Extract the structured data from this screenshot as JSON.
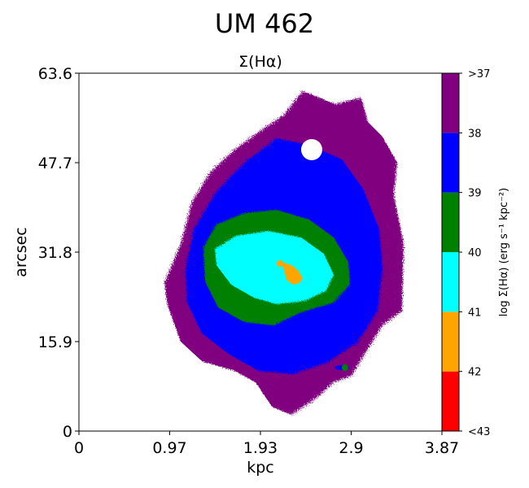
{
  "chart_data": {
    "type": "heatmap",
    "suptitle": "UM 462",
    "title": "Σ(Hα)",
    "xlabel": "kpc",
    "ylabel": "arcsec",
    "xlim": [
      0,
      3.87
    ],
    "ylim": [
      0,
      63.6
    ],
    "x_ticks": [
      "0",
      "0.97",
      "1.93",
      "2.9",
      "3.87"
    ],
    "y_ticks": [
      "0",
      "15.9",
      "31.8",
      "47.7",
      "63.6"
    ],
    "colorbar": {
      "label": "log Σ(Hα) (erg s⁻¹ kpc⁻²)",
      "tick_labels": [
        "<43",
        "42",
        "41",
        "40",
        "39",
        "38",
        ">37"
      ],
      "bins": [
        {
          "range": "<43 – 42",
          "color": "#ff0000"
        },
        {
          "range": "42 – 41",
          "color": "#ffa500"
        },
        {
          "range": "41 – 40",
          "color": "#00ffff"
        },
        {
          "range": "40 – 39",
          "color": "#008000"
        },
        {
          "range": "39 – 38",
          "color": "#0000ff"
        },
        {
          "range": "38 – >37",
          "color": "#800080"
        }
      ]
    },
    "regions": [
      {
        "level": "outer envelope",
        "color": "#800080"
      },
      {
        "level": "39 – 38",
        "color": "#0000ff"
      },
      {
        "level": "40 – 39",
        "color": "#008000"
      },
      {
        "level": "41 – 40",
        "color": "#00ffff"
      },
      {
        "level": "42 – 41",
        "color": "#ffa500"
      }
    ]
  }
}
